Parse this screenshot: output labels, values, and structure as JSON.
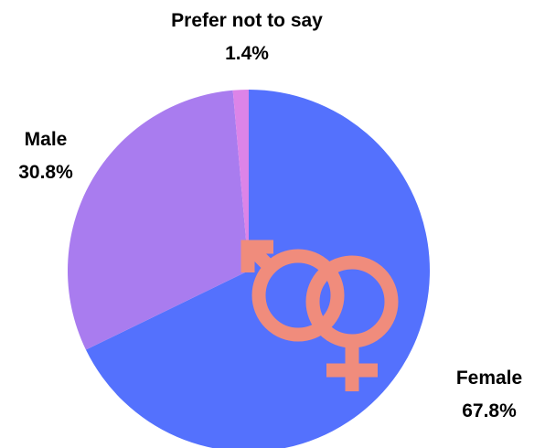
{
  "chart_data": {
    "type": "pie",
    "slices": [
      {
        "label": "Female",
        "value": 67.8,
        "value_label": "67.8%",
        "color": "#5471fd"
      },
      {
        "label": "Male",
        "value": 30.8,
        "value_label": "30.8%",
        "color": "#a97cef"
      },
      {
        "label": "Prefer not to say",
        "value": 1.4,
        "value_label": "1.4%",
        "color": "#dc84e8"
      }
    ],
    "start_angle_deg": 0,
    "direction": "clockwise",
    "decoration": {
      "icon": "gender-symbols-icon",
      "color": "#f08c7c"
    }
  }
}
